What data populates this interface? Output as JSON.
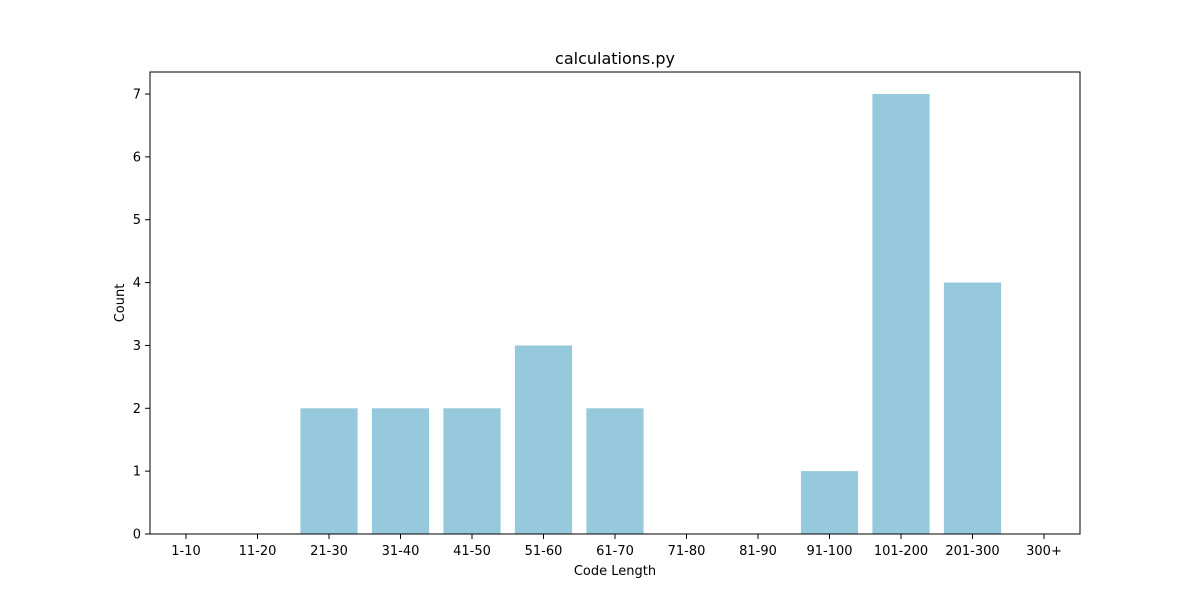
{
  "chart_data": {
    "type": "bar",
    "title": "calculations.py",
    "xlabel": "Code Length",
    "ylabel": "Count",
    "categories": [
      "1-10",
      "11-20",
      "21-30",
      "31-40",
      "41-50",
      "51-60",
      "61-70",
      "71-80",
      "81-90",
      "91-100",
      "101-200",
      "201-300",
      "300+"
    ],
    "values": [
      0,
      0,
      2,
      2,
      2,
      3,
      2,
      0,
      0,
      1,
      7,
      4,
      0
    ],
    "ylim": [
      0,
      7.35
    ],
    "yticks": [
      0,
      1,
      2,
      3,
      4,
      5,
      6,
      7
    ],
    "bar_color": "#96c9dc",
    "grid": false,
    "legend": "none"
  }
}
